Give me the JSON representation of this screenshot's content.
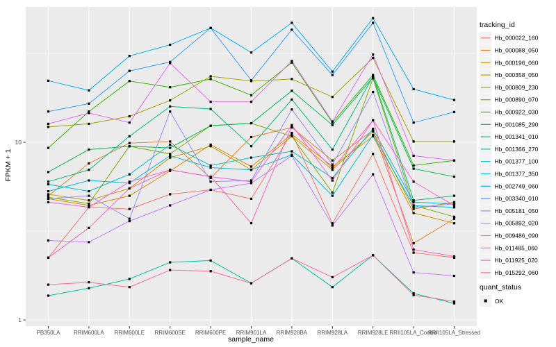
{
  "chart_data": {
    "type": "line",
    "title": "",
    "xlabel": "sample_name",
    "ylabel": "FPKM + 1",
    "yscale": "log10",
    "ylim": [
      0.88,
      58
    ],
    "grid": true,
    "legend_position": "right",
    "panel_bg": "#EBEBEB",
    "grid_color": "#FFFFFF",
    "tick_label_color": "#4D4D4D",
    "point_color": "#000000",
    "point_shape": "square",
    "y_ticks": [
      {
        "label": "1",
        "value": 1
      },
      {
        "label": "10",
        "value": 10
      }
    ],
    "y_minor_ticks": [
      3.162,
      31.62
    ],
    "categories": [
      "PB350LA",
      "RRIM600LA",
      "RRIM600LE",
      "RRIM600SE",
      "RRIM600PE",
      "RRIM901LA",
      "RRIM928BA",
      "RRIM928LA",
      "RRIM928LE",
      "RRII105LA_Control",
      "RRII105LA_Stressed"
    ],
    "series": [
      {
        "name": "Hb_000022_160",
        "color": "#F8766D",
        "values": [
          2.24,
          4.31,
          4.21,
          5.1,
          5.4,
          4.81,
          11.3,
          3.5,
          8.6,
          2.39,
          2.24
        ]
      },
      {
        "name": "Hb_000088_050",
        "color": "#EA8331",
        "values": [
          5.0,
          7.6,
          9.9,
          10.1,
          6.3,
          10.7,
          12.1,
          7.9,
          11.7,
          2.7,
          3.71
        ]
      },
      {
        "name": "Hb_000196_060",
        "color": "#D89000",
        "values": [
          4.81,
          4.41,
          5.0,
          6.9,
          9.7,
          7.3,
          11.1,
          7.3,
          10.8,
          4.0,
          3.5
        ]
      },
      {
        "name": "Hb_000358_050",
        "color": "#C09B00",
        "values": [
          5.1,
          4.71,
          5.5,
          8.2,
          9.5,
          7.0,
          10.8,
          7.0,
          11.5,
          4.21,
          4.6
        ]
      },
      {
        "name": "Hb_000809_230",
        "color": "#A3A500",
        "values": [
          12.2,
          12.7,
          14.0,
          17.2,
          23.5,
          22.1,
          22.7,
          18.0,
          29.8,
          10.1,
          10.1
        ]
      },
      {
        "name": "Hb_000890_070",
        "color": "#7CAE00",
        "values": [
          4.91,
          4.51,
          9.5,
          8.6,
          12.4,
          12.8,
          10.8,
          5.21,
          22.9,
          4.41,
          3.81
        ]
      },
      {
        "name": "Hb_000922_030",
        "color": "#39B600",
        "values": [
          9.3,
          14.9,
          22.1,
          20.4,
          22.7,
          18.4,
          28.1,
          12.9,
          23.9,
          7.4,
          7.9
        ]
      },
      {
        "name": "Hb_001085_290",
        "color": "#00BB4E",
        "values": [
          6.8,
          9.1,
          9.5,
          9.3,
          12.4,
          12.8,
          19.5,
          12.5,
          23.2,
          7.1,
          6.4
        ]
      },
      {
        "name": "Hb_001341_010",
        "color": "#00BF7D",
        "values": [
          6.0,
          7.0,
          10.8,
          15.9,
          15.4,
          9.5,
          17.4,
          9.1,
          23.5,
          4.71,
          5.0
        ]
      },
      {
        "name": "Hb_001366_270",
        "color": "#00C1A3",
        "values": [
          1.37,
          1.51,
          1.7,
          2.11,
          2.16,
          1.61,
          2.22,
          1.53,
          2.31,
          1.41,
          1.24
        ]
      },
      {
        "name": "Hb_001377_100",
        "color": "#00BFC4",
        "values": [
          5.8,
          5.3,
          6.6,
          9.7,
          7.4,
          8.2,
          8.9,
          6.3,
          11.9,
          4.6,
          4.5
        ]
      },
      {
        "name": "Hb_001377_350",
        "color": "#00BAE0",
        "values": [
          5.3,
          6.1,
          5.9,
          8.4,
          7.2,
          7.0,
          8.5,
          5.0,
          11.0,
          4.4,
          4.3
        ]
      },
      {
        "name": "Hb_002749_060",
        "color": "#00B0F6",
        "values": [
          22.2,
          19.6,
          30.6,
          35.4,
          44.0,
          32.0,
          47.0,
          25.0,
          50.0,
          19.9,
          17.3
        ]
      },
      {
        "name": "Hb_003340_010",
        "color": "#35A2FF",
        "values": [
          14.9,
          16.5,
          25.2,
          28.3,
          44.0,
          22.3,
          43.0,
          23.9,
          47.0,
          12.9,
          14.8
        ]
      },
      {
        "name": "Hb_005181_050",
        "color": "#9590FF",
        "values": [
          4.81,
          5.0,
          3.71,
          14.9,
          6.0,
          6.1,
          15.3,
          7.5,
          19.2,
          4.3,
          4.5
        ]
      },
      {
        "name": "Hb_005892_020",
        "color": "#C77CFF",
        "values": [
          2.8,
          2.74,
          3.6,
          4.41,
          5.4,
          5.89,
          8.4,
          3.4,
          6.6,
          1.85,
          1.77
        ]
      },
      {
        "name": "Hb_009486_090",
        "color": "#E76BF3",
        "values": [
          12.7,
          14.6,
          12.9,
          27.9,
          16.9,
          16.9,
          28.7,
          13.1,
          31.2,
          8.4,
          7.9
        ]
      },
      {
        "name": "Hb_011485_060",
        "color": "#FA62DB",
        "values": [
          4.6,
          4.31,
          6.0,
          7.0,
          6.4,
          6.0,
          12.5,
          6.1,
          13.3,
          6.0,
          4.4
        ]
      },
      {
        "name": "Hb_011925_020",
        "color": "#FF62BC",
        "values": [
          2.24,
          3.3,
          5.5,
          7.0,
          6.4,
          3.5,
          12.3,
          7.1,
          13.3,
          2.49,
          2.28
        ]
      },
      {
        "name": "Hb_015292_060",
        "color": "#FF6A98",
        "values": [
          1.58,
          1.63,
          1.53,
          1.91,
          1.88,
          1.61,
          2.22,
          1.74,
          2.31,
          1.38,
          1.27
        ]
      }
    ]
  },
  "legend": {
    "tracking_title": "tracking_id",
    "quant_title": "quant_status",
    "quant_items": [
      {
        "label": "OK",
        "shape": "square",
        "color": "#000000"
      }
    ],
    "key_bg": "#F2F2F2"
  }
}
